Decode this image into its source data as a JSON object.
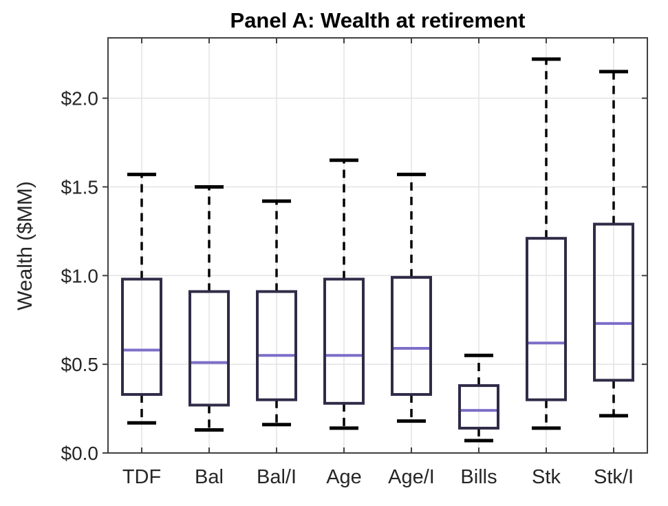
{
  "chart_data": {
    "type": "boxplot",
    "title": "Panel A: Wealth at retirement",
    "ylabel": "Wealth ($MM)",
    "xlabel": "",
    "categories": [
      "TDF",
      "Bal",
      "Bal/I",
      "Age",
      "Age/I",
      "Bills",
      "Stk",
      "Stk/I"
    ],
    "yticks": {
      "values": [
        0.0,
        0.5,
        1.0,
        1.5,
        2.0
      ],
      "labels": [
        "$0.0",
        "$0.5",
        "$1.0",
        "$1.5",
        "$2.0"
      ]
    },
    "ylim": [
      0,
      2.34
    ],
    "grid": true,
    "legend": "none",
    "boxes": [
      {
        "category": "TDF",
        "whisker_low": 0.17,
        "q1": 0.33,
        "median": 0.58,
        "q3": 0.98,
        "whisker_high": 1.57
      },
      {
        "category": "Bal",
        "whisker_low": 0.13,
        "q1": 0.27,
        "median": 0.51,
        "q3": 0.91,
        "whisker_high": 1.5
      },
      {
        "category": "Bal/I",
        "whisker_low": 0.16,
        "q1": 0.3,
        "median": 0.55,
        "q3": 0.91,
        "whisker_high": 1.42
      },
      {
        "category": "Age",
        "whisker_low": 0.14,
        "q1": 0.28,
        "median": 0.55,
        "q3": 0.98,
        "whisker_high": 1.65
      },
      {
        "category": "Age/I",
        "whisker_low": 0.18,
        "q1": 0.33,
        "median": 0.59,
        "q3": 0.99,
        "whisker_high": 1.57
      },
      {
        "category": "Bills",
        "whisker_low": 0.07,
        "q1": 0.14,
        "median": 0.24,
        "q3": 0.38,
        "whisker_high": 0.55
      },
      {
        "category": "Stk",
        "whisker_low": 0.14,
        "q1": 0.3,
        "median": 0.62,
        "q3": 1.21,
        "whisker_high": 2.22
      },
      {
        "category": "Stk/I",
        "whisker_low": 0.21,
        "q1": 0.41,
        "median": 0.73,
        "q3": 1.29,
        "whisker_high": 2.15
      }
    ],
    "colors": {
      "box_outline": "#302b47",
      "median": "#7e6ec8",
      "whisker": "#000000",
      "cap": "#000000",
      "grid": "#e3e3e3",
      "axis_border": "#404040",
      "tick_text": "#262626",
      "title_text": "#000000"
    }
  }
}
